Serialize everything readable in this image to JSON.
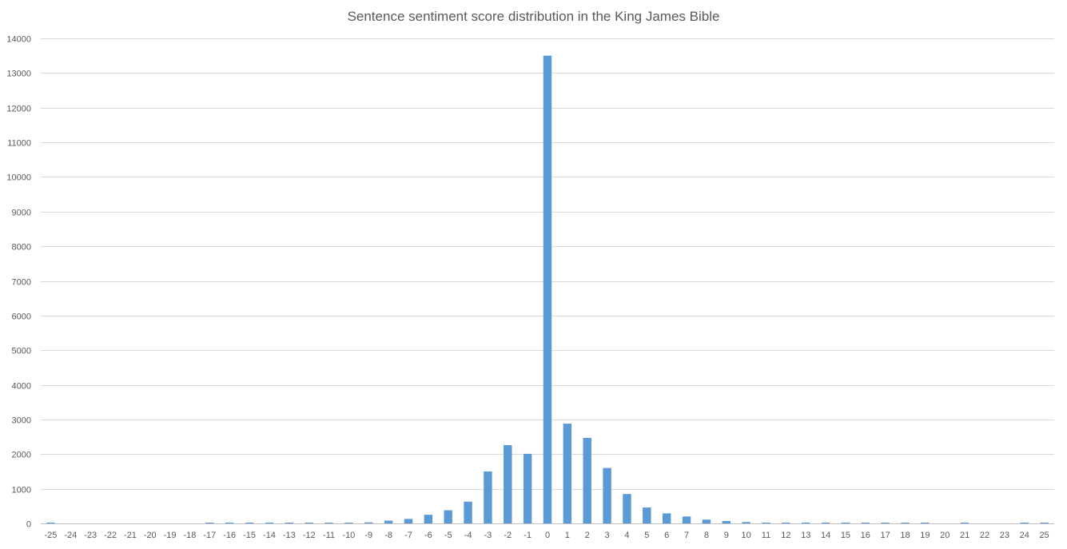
{
  "chart_data": {
    "type": "bar",
    "title": "Sentence sentiment score distribution in the King James Bible",
    "xlabel": "",
    "ylabel": "",
    "ylim": [
      0,
      14000
    ],
    "yticks": [
      0,
      1000,
      2000,
      3000,
      4000,
      5000,
      6000,
      7000,
      8000,
      9000,
      10000,
      11000,
      12000,
      13000,
      14000
    ],
    "grid": true,
    "legend": "none",
    "bar_color": "#5b9bd5",
    "categories": [
      "-25",
      "-24",
      "-23",
      "-22",
      "-21",
      "-20",
      "-19",
      "-18",
      "-17",
      "-16",
      "-15",
      "-14",
      "-13",
      "-12",
      "-11",
      "-10",
      "-9",
      "-8",
      "-7",
      "-6",
      "-5",
      "-4",
      "-3",
      "-2",
      "-1",
      "0",
      "1",
      "2",
      "3",
      "4",
      "5",
      "6",
      "7",
      "8",
      "9",
      "10",
      "11",
      "12",
      "13",
      "14",
      "15",
      "16",
      "17",
      "18",
      "19",
      "20",
      "21",
      "22",
      "23",
      "24",
      "25"
    ],
    "values": [
      1,
      0,
      0,
      0,
      0,
      0,
      0,
      0,
      1,
      2,
      2,
      3,
      4,
      6,
      10,
      18,
      30,
      80,
      130,
      250,
      380,
      630,
      1500,
      2260,
      2010,
      13500,
      2880,
      2470,
      1600,
      850,
      460,
      290,
      200,
      110,
      70,
      40,
      15,
      10,
      6,
      4,
      4,
      3,
      2,
      2,
      1,
      0,
      1,
      0,
      0,
      1,
      1
    ]
  }
}
